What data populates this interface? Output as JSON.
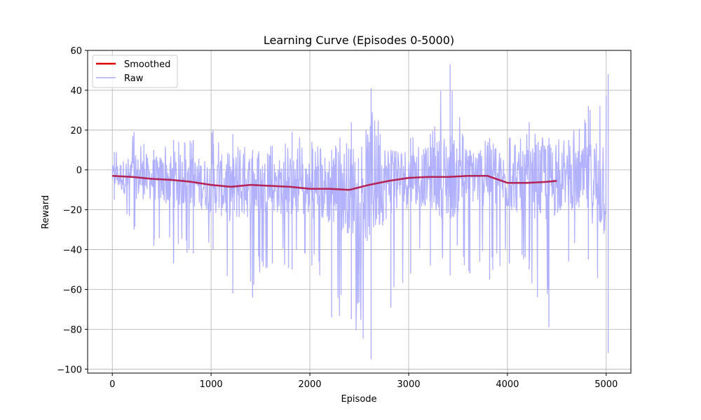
{
  "chart_data": {
    "type": "line",
    "title": "Learning Curve (Episodes 0-5000)",
    "xlabel": "Episode",
    "ylabel": "Reward",
    "xlim": [
      -250,
      5250
    ],
    "ylim": [
      -102,
      60
    ],
    "xticks": [
      0,
      1000,
      2000,
      3000,
      4000,
      5000
    ],
    "yticks": [
      -100,
      -80,
      -60,
      -40,
      -20,
      0,
      20,
      40,
      60
    ],
    "tick_labels_x": [
      "0",
      "1000",
      "2000",
      "3000",
      "4000",
      "5000"
    ],
    "tick_labels_y": [
      "−100",
      "−80",
      "−60",
      "−40",
      "−20",
      "0",
      "20",
      "40",
      "60"
    ],
    "grid": true,
    "legend_position": "top-left",
    "colors": {
      "smoothed": "#dd0000",
      "raw": "#aaaaff"
    },
    "legend": [
      "Smoothed",
      "Raw"
    ],
    "smoothed": {
      "x": [
        0,
        200,
        400,
        600,
        800,
        1000,
        1200,
        1400,
        1600,
        1800,
        2000,
        2200,
        2400,
        2600,
        2800,
        3000,
        3200,
        3400,
        3600,
        3800,
        4000,
        4200,
        4400,
        4500
      ],
      "y": [
        -3,
        -3.5,
        -4.5,
        -5,
        -6,
        -7.5,
        -8.5,
        -7.5,
        -8,
        -8.5,
        -9.5,
        -9.5,
        -10,
        -7.5,
        -5.5,
        -4,
        -3.5,
        -3.5,
        -3,
        -3,
        -6.5,
        -6.5,
        -6,
        -5.5
      ]
    },
    "raw_envelope": {
      "x": [
        0,
        200,
        400,
        600,
        800,
        1000,
        1200,
        1400,
        1600,
        1800,
        2000,
        2200,
        2400,
        2600,
        2800,
        3000,
        3200,
        3400,
        3600,
        3800,
        4000,
        4200,
        4400,
        4600,
        4800,
        5000
      ],
      "upper": [
        9,
        19,
        10,
        15,
        15,
        20,
        18,
        10,
        12,
        19,
        14,
        10,
        24,
        41,
        10,
        16,
        18,
        53,
        10,
        16,
        16,
        24,
        16,
        15,
        32,
        48
      ],
      "lower": [
        -15,
        -30,
        -38,
        -47,
        -42,
        -40,
        -62,
        -64,
        -47,
        -50,
        -48,
        -74,
        -75,
        -95,
        -69,
        -52,
        -48,
        -53,
        -52,
        -55,
        -47,
        -50,
        -79,
        -46,
        -45,
        -92
      ]
    }
  }
}
